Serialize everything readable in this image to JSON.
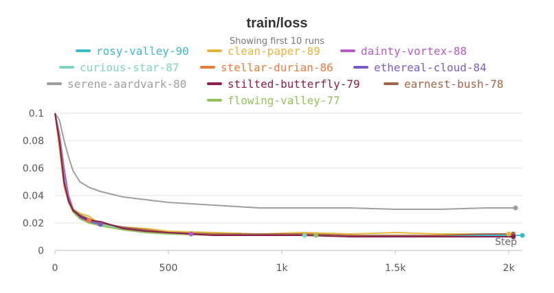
{
  "chart_data": {
    "type": "line",
    "title": "train/loss",
    "subtitle": "Showing first 10 runs",
    "xlabel": "Step",
    "ylabel": "",
    "xlim": [
      0,
      2060
    ],
    "ylim": [
      0,
      0.1
    ],
    "x_ticks": [
      0,
      500,
      1000,
      1500,
      2000
    ],
    "x_tick_labels": [
      "0",
      "500",
      "1k",
      "1.5k",
      "2k"
    ],
    "y_ticks": [
      0,
      0.02,
      0.04,
      0.06,
      0.08,
      0.1
    ],
    "y_tick_labels": [
      "0",
      "0.02",
      "0.04",
      "0.06",
      "0.08",
      "0.1"
    ],
    "grid": true,
    "legend_position": "top",
    "series": [
      {
        "name": "rosy-valley-90",
        "color": "#3cb9c9",
        "x": [
          0,
          20,
          40,
          60,
          80,
          110,
          150,
          190,
          250,
          350,
          500,
          700,
          900,
          1100,
          1300,
          1500,
          1700,
          1900,
          2060
        ],
        "y": [
          0.1,
          0.085,
          0.055,
          0.038,
          0.03,
          0.025,
          0.022,
          0.02,
          0.018,
          0.015,
          0.013,
          0.012,
          0.011,
          0.011,
          0.011,
          0.011,
          0.011,
          0.011,
          0.011
        ]
      },
      {
        "name": "clean-paper-89",
        "color": "#e8b33a",
        "x": [
          0,
          20,
          40,
          60,
          80,
          110,
          150,
          200,
          300,
          400,
          500,
          700,
          900,
          1100,
          1300,
          1500,
          1700,
          1900,
          2000
        ],
        "y": [
          0.1,
          0.08,
          0.05,
          0.038,
          0.03,
          0.027,
          0.025,
          0.019,
          0.017,
          0.016,
          0.014,
          0.013,
          0.012,
          0.013,
          0.012,
          0.013,
          0.012,
          0.012,
          0.012
        ]
      },
      {
        "name": "dainty-vortex-88",
        "color": "#b65cc4",
        "x": [
          0,
          20,
          40,
          60,
          80,
          110,
          150,
          200,
          300,
          400,
          500,
          600
        ],
        "y": [
          0.1,
          0.085,
          0.06,
          0.04,
          0.03,
          0.024,
          0.021,
          0.019,
          0.016,
          0.015,
          0.013,
          0.012
        ]
      },
      {
        "name": "curious-star-87",
        "color": "#7fd3c0",
        "x": [
          0,
          20,
          40,
          60,
          80,
          110,
          150,
          200,
          300,
          400,
          500,
          700,
          900,
          1100
        ],
        "y": [
          0.1,
          0.083,
          0.052,
          0.037,
          0.029,
          0.024,
          0.021,
          0.019,
          0.016,
          0.014,
          0.013,
          0.012,
          0.011,
          0.011
        ]
      },
      {
        "name": "stellar-durian-86",
        "color": "#ec7a3a",
        "x": [
          0,
          20,
          40,
          60,
          80,
          110,
          150
        ],
        "y": [
          0.1,
          0.075,
          0.047,
          0.035,
          0.028,
          0.024,
          0.022
        ]
      },
      {
        "name": "ethereal-cloud-84",
        "color": "#7b5bc6",
        "x": [
          0,
          20,
          40,
          60,
          80,
          110,
          150,
          200
        ],
        "y": [
          0.1,
          0.08,
          0.05,
          0.036,
          0.029,
          0.024,
          0.021,
          0.019
        ]
      },
      {
        "name": "serene-aardvark-80",
        "color": "#9e9e9e",
        "x": [
          0,
          20,
          40,
          60,
          80,
          110,
          150,
          200,
          300,
          400,
          500,
          700,
          900,
          1100,
          1300,
          1500,
          1700,
          1900,
          2030
        ],
        "y": [
          0.1,
          0.095,
          0.08,
          0.068,
          0.058,
          0.05,
          0.046,
          0.043,
          0.039,
          0.037,
          0.035,
          0.033,
          0.031,
          0.031,
          0.031,
          0.03,
          0.03,
          0.031,
          0.031
        ]
      },
      {
        "name": "stilted-butterfly-79",
        "color": "#8c1c4b",
        "x": [
          0,
          20,
          40,
          60,
          80,
          110,
          150,
          200,
          300,
          400,
          500,
          700,
          900,
          1100,
          1300,
          1500,
          1700,
          1900,
          2020
        ],
        "y": [
          0.1,
          0.08,
          0.05,
          0.036,
          0.029,
          0.025,
          0.022,
          0.021,
          0.016,
          0.014,
          0.013,
          0.011,
          0.011,
          0.011,
          0.01,
          0.01,
          0.01,
          0.01,
          0.01
        ]
      },
      {
        "name": "earnest-bush-78",
        "color": "#a0664a",
        "x": [
          0,
          20,
          40,
          60,
          80,
          110,
          150,
          200,
          300,
          400,
          500,
          700,
          900,
          1100,
          1300,
          1500,
          1700,
          1900,
          2020
        ],
        "y": [
          0.1,
          0.078,
          0.05,
          0.037,
          0.03,
          0.026,
          0.023,
          0.02,
          0.017,
          0.015,
          0.013,
          0.012,
          0.012,
          0.012,
          0.011,
          0.011,
          0.011,
          0.012,
          0.012
        ]
      },
      {
        "name": "flowing-valley-77",
        "color": "#93c15a",
        "x": [
          0,
          20,
          40,
          60,
          80,
          110,
          150,
          200,
          300,
          400,
          500,
          700,
          900,
          1100,
          1150
        ],
        "y": [
          0.1,
          0.082,
          0.05,
          0.036,
          0.028,
          0.023,
          0.02,
          0.018,
          0.015,
          0.013,
          0.012,
          0.011,
          0.011,
          0.011,
          0.011
        ]
      }
    ]
  }
}
